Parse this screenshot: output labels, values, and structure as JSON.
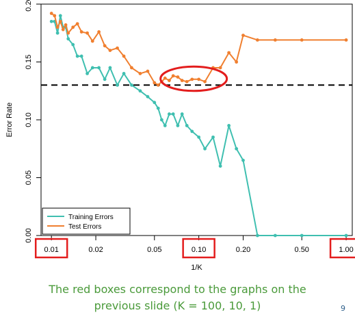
{
  "chart_data": {
    "type": "line",
    "xlabel": "1/K",
    "ylabel": "Error Rate",
    "x_scale": "log",
    "xlim": [
      0.0085,
      1.1
    ],
    "ylim": [
      0.0,
      0.2
    ],
    "x_ticks": [
      {
        "value": 0.01,
        "label": "0.01",
        "boxed": true
      },
      {
        "value": 0.02,
        "label": "0.02",
        "boxed": false
      },
      {
        "value": 0.05,
        "label": "0.05",
        "boxed": false
      },
      {
        "value": 0.1,
        "label": "0.10",
        "boxed": true
      },
      {
        "value": 0.2,
        "label": "0.20",
        "boxed": false
      },
      {
        "value": 0.5,
        "label": "0.50",
        "boxed": false
      },
      {
        "value": 1.0,
        "label": "1.00",
        "boxed": true
      }
    ],
    "y_ticks": [
      {
        "value": 0.0,
        "label": "0.00"
      },
      {
        "value": 0.05,
        "label": "0.05"
      },
      {
        "value": 0.1,
        "label": "0.10"
      },
      {
        "value": 0.15,
        "label": "0.15"
      },
      {
        "value": 0.2,
        "label": "0.20"
      }
    ],
    "reference_line": {
      "y": 0.13,
      "style": "dashed",
      "color": "#000000"
    },
    "highlight_ellipse": {
      "x_range": [
        0.055,
        0.155
      ],
      "y_center": 0.1355,
      "y_halfrange": 0.0105,
      "color": "#e31d1d"
    },
    "legend": {
      "position": "bottom-left"
    },
    "series": [
      {
        "name": "Training Errors",
        "color": "#3fbfb0",
        "x": [
          0.01,
          0.0105,
          0.011,
          0.0115,
          0.012,
          0.0125,
          0.013,
          0.014,
          0.015,
          0.016,
          0.0175,
          0.019,
          0.021,
          0.023,
          0.025,
          0.028,
          0.031,
          0.035,
          0.04,
          0.045,
          0.05,
          0.053,
          0.056,
          0.059,
          0.063,
          0.067,
          0.072,
          0.077,
          0.083,
          0.09,
          0.1,
          0.11,
          0.125,
          0.14,
          0.16,
          0.18,
          0.2,
          0.25,
          0.33,
          0.5,
          1.0
        ],
        "y": [
          0.185,
          0.185,
          0.175,
          0.19,
          0.18,
          0.18,
          0.17,
          0.165,
          0.155,
          0.155,
          0.14,
          0.145,
          0.145,
          0.135,
          0.145,
          0.13,
          0.14,
          0.13,
          0.125,
          0.12,
          0.115,
          0.11,
          0.1,
          0.095,
          0.105,
          0.105,
          0.095,
          0.105,
          0.095,
          0.09,
          0.085,
          0.075,
          0.085,
          0.06,
          0.095,
          0.075,
          0.065,
          0.0,
          0.0,
          0.0,
          0.0
        ]
      },
      {
        "name": "Test Errors",
        "color": "#f07f2f",
        "x": [
          0.01,
          0.0105,
          0.011,
          0.0115,
          0.012,
          0.0125,
          0.013,
          0.014,
          0.015,
          0.016,
          0.0175,
          0.019,
          0.021,
          0.023,
          0.025,
          0.028,
          0.031,
          0.035,
          0.04,
          0.045,
          0.05,
          0.053,
          0.056,
          0.059,
          0.063,
          0.067,
          0.072,
          0.077,
          0.083,
          0.09,
          0.1,
          0.11,
          0.125,
          0.14,
          0.16,
          0.18,
          0.2,
          0.25,
          0.33,
          0.5,
          1.0
        ],
        "y": [
          0.192,
          0.19,
          0.18,
          0.185,
          0.178,
          0.182,
          0.175,
          0.18,
          0.183,
          0.176,
          0.175,
          0.168,
          0.176,
          0.164,
          0.16,
          0.162,
          0.155,
          0.145,
          0.14,
          0.142,
          0.132,
          0.13,
          0.133,
          0.136,
          0.134,
          0.138,
          0.137,
          0.134,
          0.133,
          0.135,
          0.135,
          0.133,
          0.145,
          0.145,
          0.158,
          0.15,
          0.173,
          0.169,
          0.169,
          0.169,
          0.169
        ]
      }
    ]
  },
  "caption": {
    "line1": "The red boxes correspond to the graphs on the",
    "line2": "previous slide (K = 100, 10, 1)"
  },
  "slide_number": "9"
}
